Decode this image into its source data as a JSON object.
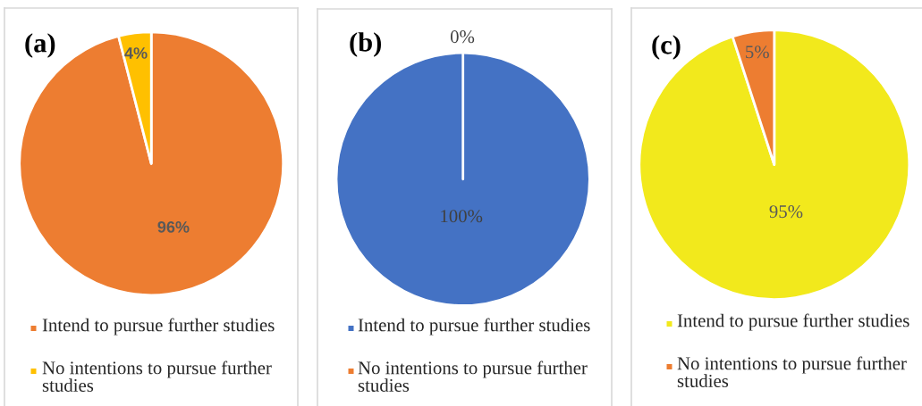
{
  "chart_data": [
    {
      "type": "pie",
      "title": "(a)",
      "categories": [
        "Intend to pursue further studies",
        "No intentions to pursue further studies"
      ],
      "values": [
        96,
        4
      ],
      "colors": [
        "#ed7d31",
        "#ffc000"
      ],
      "value_labels": [
        "96%",
        "4%"
      ],
      "legend": "bottom"
    },
    {
      "type": "pie",
      "title": "(b)",
      "categories": [
        "Intend to pursue further studies",
        "No intentions to pursue further studies"
      ],
      "values": [
        100,
        0
      ],
      "colors": [
        "#4472c4",
        "#ed7d31"
      ],
      "value_labels": [
        "100%",
        "0%"
      ],
      "legend": "bottom"
    },
    {
      "type": "pie",
      "title": "(c)",
      "categories": [
        "Intend to pursue further studies",
        "No intentions to pursue further studies"
      ],
      "values": [
        95,
        5
      ],
      "colors": [
        "#f2e91c",
        "#ed7d31"
      ],
      "value_labels": [
        "95%",
        "5%"
      ],
      "legend": "bottom"
    }
  ]
}
